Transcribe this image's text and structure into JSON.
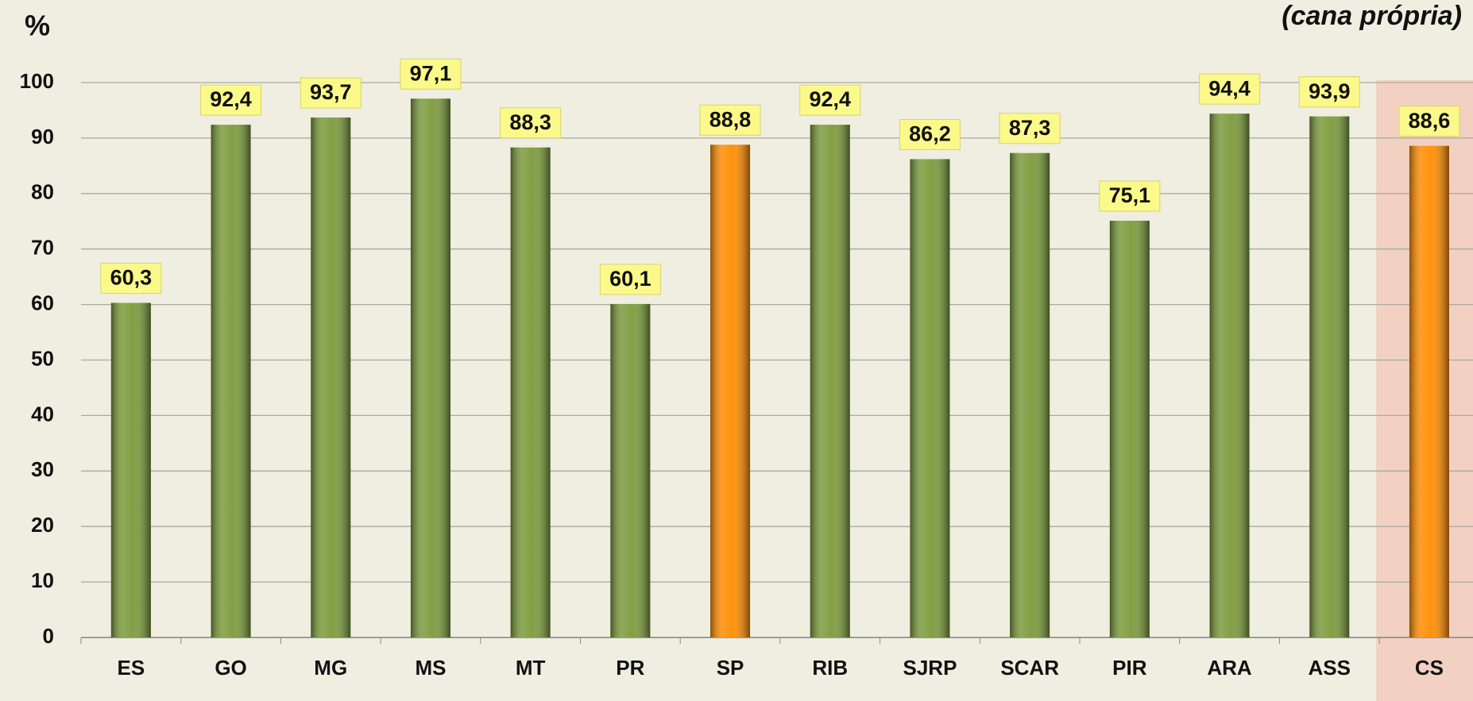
{
  "chart_data": {
    "type": "bar",
    "axis_label": "%",
    "subtitle": "(cana própria)",
    "categories": [
      "ES",
      "GO",
      "MG",
      "MS",
      "MT",
      "PR",
      "SP",
      "RIB",
      "SJRP",
      "SCAR",
      "PIR",
      "ARA",
      "ASS",
      "CS"
    ],
    "values": [
      60.3,
      92.4,
      93.7,
      97.1,
      88.3,
      60.1,
      88.8,
      92.4,
      86.2,
      87.3,
      75.1,
      94.4,
      93.9,
      88.6
    ],
    "value_labels": [
      "60,3",
      "92,4",
      "93,7",
      "97,1",
      "88,3",
      "60,1",
      "88,8",
      "92,4",
      "86,2",
      "87,3",
      "75,1",
      "94,4",
      "93,9",
      "88,6"
    ],
    "colors": [
      "#7b9b3b",
      "#7b9b3b",
      "#7b9b3b",
      "#7b9b3b",
      "#7b9b3b",
      "#7b9b3b",
      "#ff8c00",
      "#7b9b3b",
      "#7b9b3b",
      "#7b9b3b",
      "#7b9b3b",
      "#7b9b3b",
      "#7b9b3b",
      "#ff8c00"
    ],
    "highlight_category": "CS",
    "ylim": [
      0,
      100
    ],
    "yticks": [
      0,
      10,
      20,
      30,
      40,
      50,
      60,
      70,
      80,
      90,
      100
    ],
    "grid": true
  }
}
